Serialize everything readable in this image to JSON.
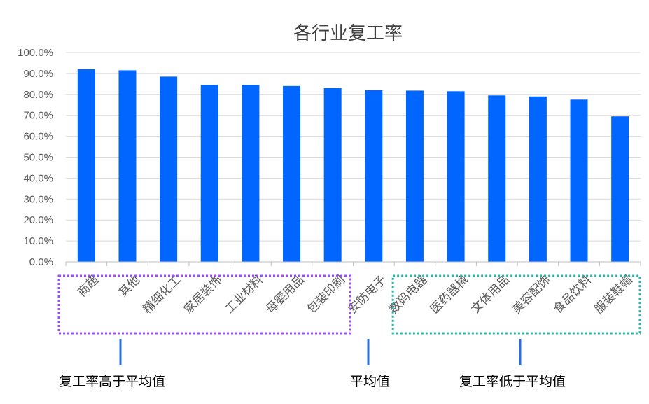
{
  "chart_data": {
    "type": "bar",
    "title": "各行业复工率",
    "categories": [
      "商超",
      "其他",
      "精细化工",
      "家居装饰",
      "工业材料",
      "母婴用品",
      "包装印刷",
      "安防电子",
      "数码电器",
      "医药器械",
      "文体用品",
      "美容配饰",
      "食品饮料",
      "服装鞋帽"
    ],
    "values": [
      92.0,
      91.5,
      88.5,
      84.5,
      84.5,
      84.0,
      83.0,
      82.0,
      81.8,
      81.5,
      79.5,
      79.0,
      77.5,
      69.5
    ],
    "ylim": [
      0,
      100
    ],
    "yticks": [
      "0.0%",
      "10.0%",
      "20.0%",
      "30.0%",
      "40.0%",
      "50.0%",
      "60.0%",
      "70.0%",
      "80.0%",
      "90.0%",
      "100.0%"
    ],
    "grid": true,
    "bar_color": "#0066ff"
  },
  "annotations": {
    "above_average": {
      "label": "复工率高于平均值",
      "color": "#9b4dff",
      "first_index": 0,
      "last_index": 6
    },
    "average": {
      "label": "平均值",
      "color": "#2b6fd6",
      "index": 7
    },
    "below_average": {
      "label": "复工率低于平均值",
      "color": "#2ab3a6",
      "first_index": 8,
      "last_index": 13
    }
  }
}
